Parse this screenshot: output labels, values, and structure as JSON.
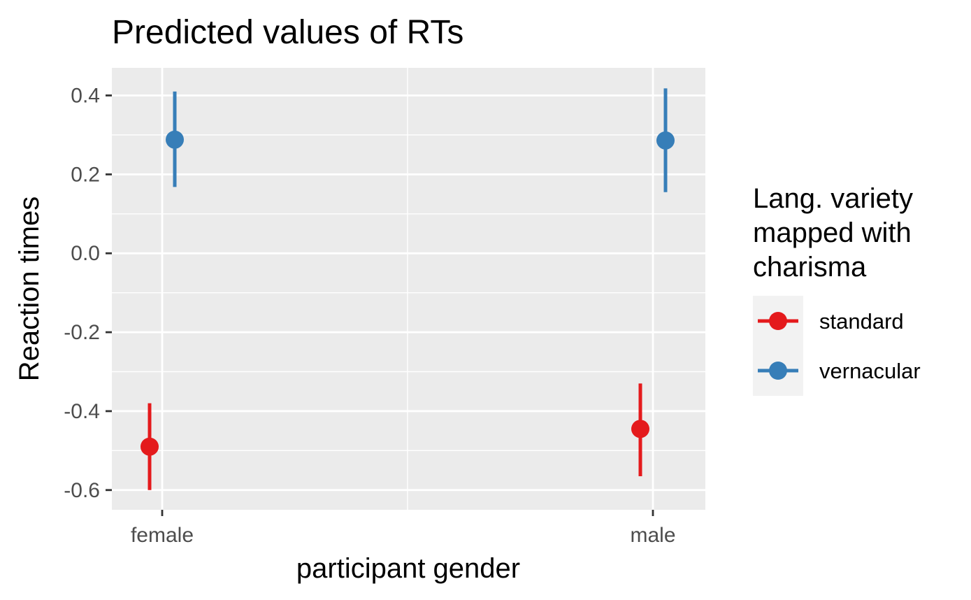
{
  "chart_data": {
    "type": "scatter",
    "title": "Predicted values of RTs",
    "xlabel": "participant gender",
    "ylabel": "Reaction times",
    "categories": [
      "female",
      "male"
    ],
    "ylim": [
      -0.65,
      0.47
    ],
    "yticks": [
      -0.6,
      -0.4,
      -0.2,
      0.0,
      0.2,
      0.4
    ],
    "ytick_labels": [
      "-0.6",
      "-0.4",
      "-0.2",
      "0.0",
      "0.2",
      "0.4"
    ],
    "grid": true,
    "legend": {
      "title": "Lang. variety\nmapped with\ncharisma",
      "position": "right"
    },
    "series": [
      {
        "name": "standard",
        "color": "#e41a1c",
        "values": [
          -0.49,
          -0.445
        ],
        "ci_low": [
          -0.6,
          -0.565
        ],
        "ci_high": [
          -0.38,
          -0.33
        ]
      },
      {
        "name": "vernacular",
        "color": "#377eb8",
        "values": [
          0.288,
          0.286
        ],
        "ci_low": [
          0.168,
          0.155
        ],
        "ci_high": [
          0.41,
          0.418
        ]
      }
    ]
  }
}
